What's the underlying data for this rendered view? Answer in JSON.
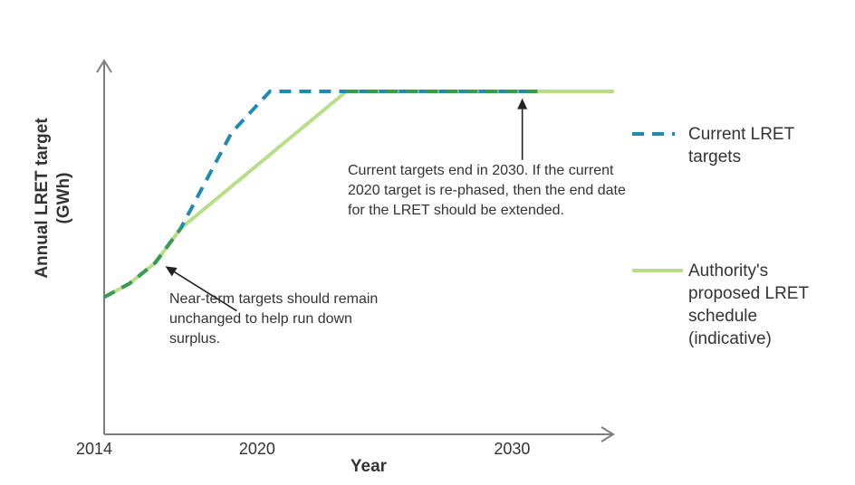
{
  "chart_data": {
    "type": "line",
    "title": "",
    "xlabel": "Year",
    "ylabel": "Annual LRET target (GWh)",
    "ylabel_lines": [
      "Annual LRET target",
      "(GWh)"
    ],
    "xlim": [
      2014,
      2034
    ],
    "ylim": [
      0,
      100
    ],
    "x_ticks": [
      2014,
      2020,
      2030
    ],
    "x_tick_labels": [
      "2014",
      "2020",
      "2030"
    ],
    "y_tick_labels": [],
    "grid": false,
    "legend_position": "right",
    "series": [
      {
        "name": "Current LRET targets",
        "style": "dashed",
        "color": "#1f8bb0",
        "points": [
          [
            2014,
            40
          ],
          [
            2015,
            44
          ],
          [
            2016,
            50
          ],
          [
            2017,
            60
          ],
          [
            2018,
            74
          ],
          [
            2019,
            88
          ],
          [
            2020.5,
            100
          ],
          [
            2031,
            100
          ]
        ]
      },
      {
        "name": "Authority's proposed LRET schedule (indicative)",
        "style": "solid",
        "color": "#b8de88",
        "points": [
          [
            2014,
            40
          ],
          [
            2015,
            44
          ],
          [
            2016,
            50
          ],
          [
            2017,
            60
          ],
          [
            2023.5,
            100
          ],
          [
            2034,
            100
          ]
        ]
      }
    ],
    "overlap": {
      "style": "dashed",
      "color": "#3a9a4e",
      "segments": [
        [
          [
            2014,
            40
          ],
          [
            2015,
            44
          ],
          [
            2016,
            50
          ],
          [
            2017,
            60
          ]
        ],
        [
          [
            2023.5,
            100
          ],
          [
            2031,
            100
          ]
        ]
      ]
    },
    "annotations": [
      {
        "id": "end-date",
        "text": "Current targets end in 2030. If the current 2020 target is re-phased, then the end date for the LRET should be extended.",
        "lines": [
          "Current targets end in 2030. If the current",
          "2020 target is re-phased, then the end date",
          "for the LRET should be extended."
        ],
        "arrow_tail": [
          2030.4,
          80
        ],
        "arrow_head": [
          2030.4,
          98
        ]
      },
      {
        "id": "near-term",
        "text": "Near-term targets should remain unchanged to help run down surplus.",
        "lines": [
          "Near-term targets should remain",
          "unchanged to help run down",
          "surplus."
        ],
        "arrow_tail": [
          2019.2,
          36
        ],
        "arrow_head": [
          2016.4,
          49
        ]
      }
    ]
  },
  "legend": {
    "current_lines": [
      "Current LRET",
      "targets"
    ],
    "authority_lines": [
      "Authority's",
      "proposed LRET",
      "schedule",
      "(indicative)"
    ]
  }
}
